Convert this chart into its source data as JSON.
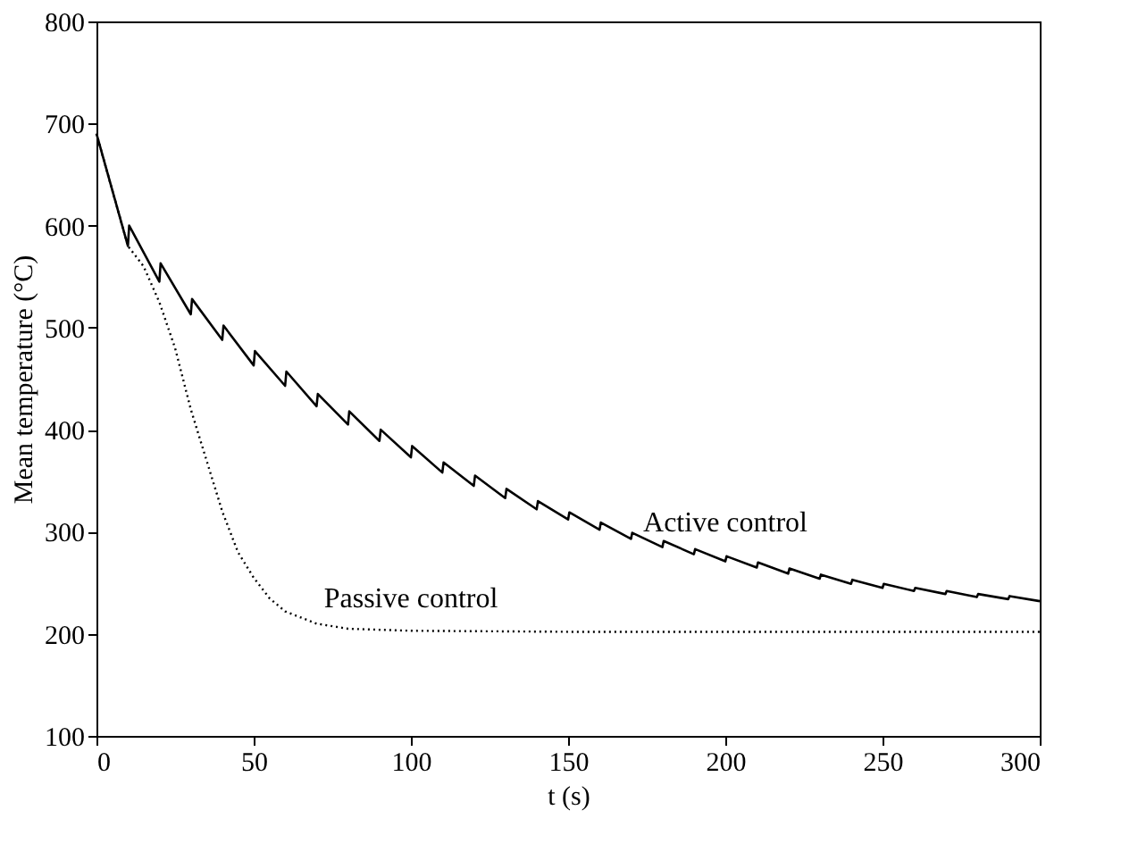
{
  "chart_data": {
    "type": "line",
    "xlabel": "t (s)",
    "ylabel": "Mean temperature (°C)",
    "xlim": [
      0,
      300
    ],
    "ylim": [
      100,
      800
    ],
    "xticks": [
      0,
      50,
      100,
      150,
      200,
      250,
      300
    ],
    "yticks": [
      100,
      200,
      300,
      400,
      500,
      600,
      700,
      800
    ],
    "marker": "none",
    "series": [
      {
        "name": "Active control",
        "color": "#000000",
        "line_style": "solid",
        "x": [
          0,
          10,
          10.4,
          20,
          20.4,
          30,
          30.4,
          40,
          40.4,
          50,
          50.4,
          60,
          60.4,
          70,
          70.4,
          80,
          80.4,
          90,
          90.4,
          100,
          100.4,
          110,
          110.4,
          120,
          120.4,
          130,
          130.4,
          140,
          140.4,
          150,
          150.4,
          160,
          160.4,
          170,
          170.4,
          180,
          180.4,
          190,
          190.4,
          200,
          200.4,
          210,
          210.4,
          220,
          220.4,
          230,
          230.4,
          240,
          240.4,
          250,
          250.4,
          260,
          260.4,
          270,
          270.4,
          280,
          280.4,
          290,
          290.4,
          300
        ],
        "values": [
          690,
          580,
          600,
          545,
          563,
          513,
          528,
          488,
          502,
          463,
          477,
          443,
          457,
          423,
          435,
          405,
          418,
          389,
          400,
          373,
          384,
          358,
          368,
          345,
          355,
          333,
          342,
          322,
          330,
          312,
          319,
          302,
          309,
          293,
          299,
          285,
          291,
          278,
          283,
          271,
          276,
          265,
          270,
          259,
          264,
          254,
          258,
          249,
          253,
          245,
          249,
          242,
          245,
          239,
          242,
          236,
          239,
          234,
          237,
          232
        ]
      },
      {
        "name": "Passive control",
        "color": "#000000",
        "line_style": "dotted",
        "x": [
          0,
          10,
          15,
          20,
          25,
          30,
          35,
          40,
          45,
          50,
          55,
          60,
          70,
          80,
          100,
          150,
          200,
          300
        ],
        "values": [
          690,
          580,
          560,
          525,
          480,
          420,
          370,
          320,
          280,
          255,
          235,
          222,
          210,
          205,
          203,
          202,
          202,
          202
        ]
      }
    ]
  }
}
